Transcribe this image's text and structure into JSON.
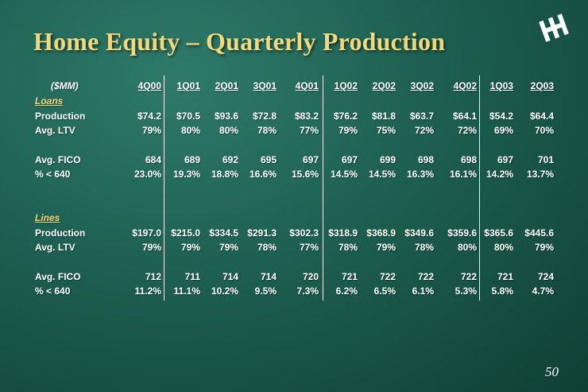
{
  "title": "Home Equity – Quarterly Production",
  "page_number": "50",
  "units_label": "($MM)",
  "columns": [
    "4Q00",
    "1Q01",
    "2Q01",
    "3Q01",
    "4Q01",
    "1Q02",
    "2Q02",
    "3Q02",
    "4Q02",
    "1Q03",
    "2Q03"
  ],
  "loans": {
    "label": "Loans",
    "rows": [
      {
        "label": "Production",
        "values": [
          "$74.2",
          "$70.5",
          "$93.6",
          "$72.8",
          "$83.2",
          "$76.2",
          "$81.8",
          "$63.7",
          "$64.1",
          "$54.2",
          "$64.4"
        ]
      },
      {
        "label": "Avg. LTV",
        "values": [
          "79%",
          "80%",
          "80%",
          "78%",
          "77%",
          "79%",
          "75%",
          "72%",
          "72%",
          "69%",
          "70%"
        ]
      },
      {
        "label": "Avg. FICO",
        "values": [
          "684",
          "689",
          "692",
          "695",
          "697",
          "697",
          "699",
          "698",
          "698",
          "697",
          "701"
        ]
      },
      {
        "label": "% < 640",
        "values": [
          "23.0%",
          "19.3%",
          "18.8%",
          "16.6%",
          "15.6%",
          "14.5%",
          "14.5%",
          "16.3%",
          "16.1%",
          "14.2%",
          "13.7%"
        ]
      }
    ]
  },
  "lines": {
    "label": "Lines",
    "rows": [
      {
        "label": "Production",
        "values": [
          "$197.0",
          "$215.0",
          "$334.5",
          "$291.3",
          "$302.3",
          "$318.9",
          "$368.9",
          "$349.6",
          "$359.6",
          "$365.6",
          "$445.6"
        ]
      },
      {
        "label": "Avg. LTV",
        "values": [
          "79%",
          "79%",
          "79%",
          "78%",
          "77%",
          "78%",
          "79%",
          "78%",
          "80%",
          "80%",
          "79%"
        ]
      },
      {
        "label": "Avg. FICO",
        "values": [
          "712",
          "711",
          "714",
          "714",
          "720",
          "721",
          "722",
          "722",
          "722",
          "721",
          "724"
        ]
      },
      {
        "label": "% < 640",
        "values": [
          "11.2%",
          "11.1%",
          "10.2%",
          "9.5%",
          "7.3%",
          "6.2%",
          "6.5%",
          "6.1%",
          "5.3%",
          "5.8%",
          "4.7%"
        ]
      }
    ]
  }
}
